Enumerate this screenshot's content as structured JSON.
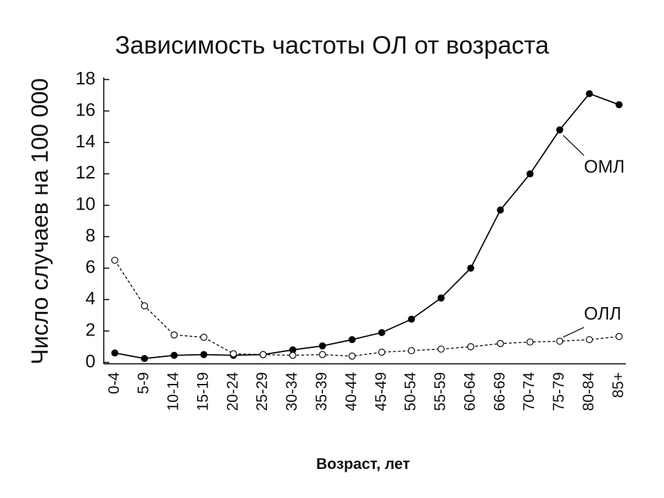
{
  "chart_data": {
    "type": "line",
    "title": "Зависимость частоты ОЛ от возраста",
    "y_label": "Число случаев на 100 000",
    "x_label": "Возраст, лет",
    "categories": [
      "0-4",
      "5-9",
      "10-14",
      "15-19",
      "20-24",
      "25-29",
      "30-34",
      "35-39",
      "40-44",
      "45-49",
      "50-54",
      "55-59",
      "60-64",
      "66-69",
      "70-74",
      "75-79",
      "80-84",
      "85+"
    ],
    "series": [
      {
        "name": "ОМЛ",
        "color": "#000000",
        "line_style": "solid",
        "marker": "filled",
        "values": [
          0.6,
          0.25,
          0.45,
          0.5,
          0.45,
          0.5,
          0.8,
          1.05,
          1.45,
          1.9,
          2.75,
          4.1,
          6.0,
          9.7,
          12.0,
          14.8,
          17.1,
          16.4
        ]
      },
      {
        "name": "ОЛЛ",
        "color": "#000000",
        "line_style": "dashed",
        "marker": "open",
        "values": [
          6.5,
          3.6,
          1.75,
          1.6,
          0.55,
          0.5,
          0.45,
          0.5,
          0.4,
          0.65,
          0.75,
          0.85,
          1.0,
          1.2,
          1.3,
          1.35,
          1.45,
          1.65
        ]
      }
    ],
    "ylim": [
      0,
      18
    ],
    "yticks": [
      0,
      2,
      4,
      6,
      8,
      10,
      12,
      14,
      16,
      18
    ],
    "grid": false,
    "labels_on_lines": true
  }
}
